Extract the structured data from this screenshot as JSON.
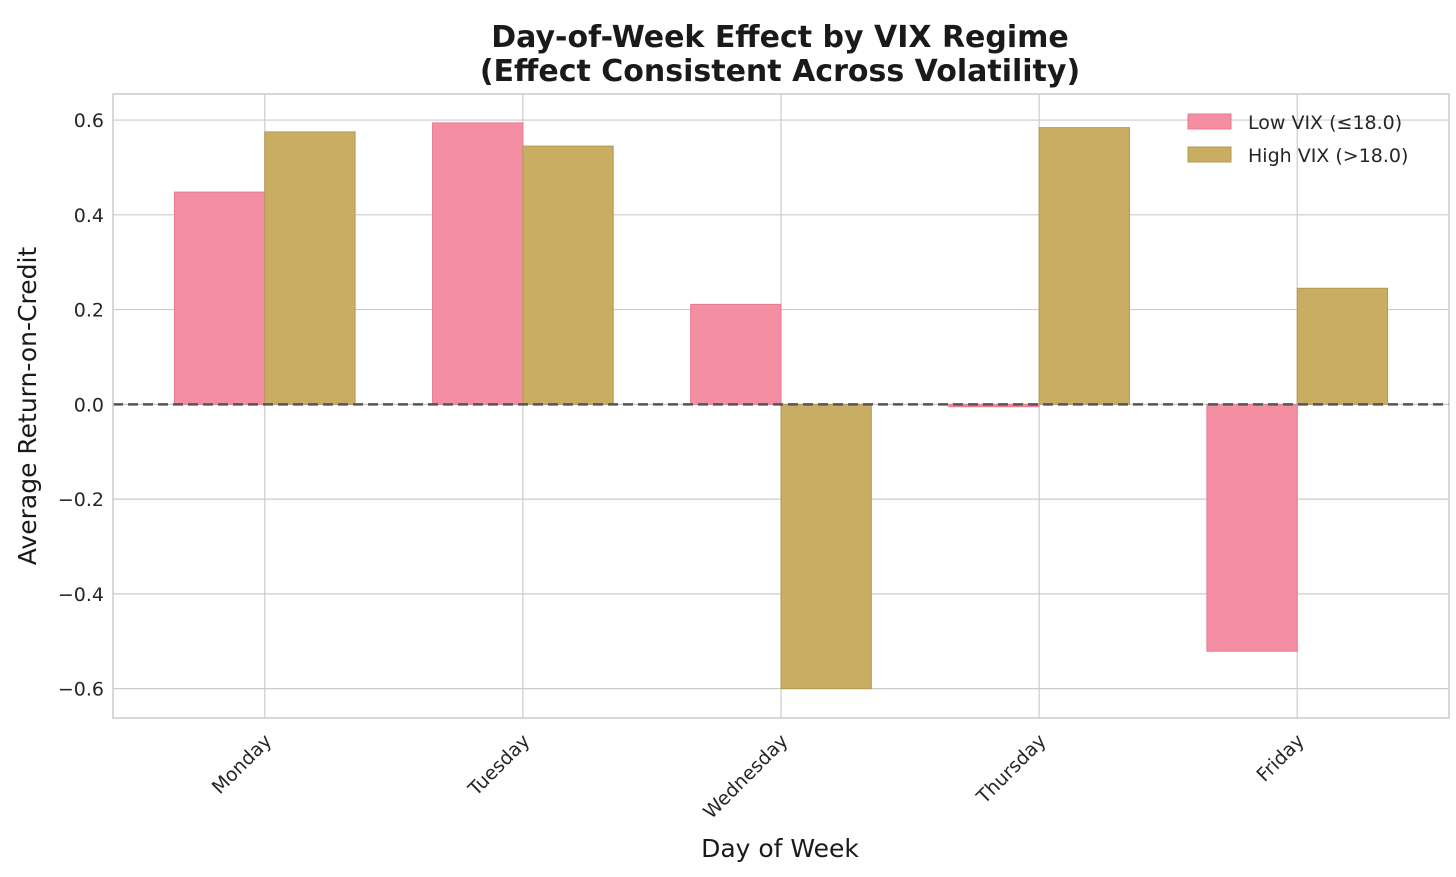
{
  "chart_data": {
    "type": "bar",
    "title": [
      "Day-of-Week Effect by VIX Regime",
      "(Effect Consistent Across Volatility)"
    ],
    "xlabel": "Day of Week",
    "ylabel": "Average Return-on-Credit",
    "categories": [
      "Monday",
      "Tuesday",
      "Wednesday",
      "Thursday",
      "Friday"
    ],
    "series": [
      {
        "name": "Low VIX (≤18.0)",
        "color": "#f48fa3",
        "edge": "#e97a91",
        "values": [
          0.448,
          0.594,
          0.211,
          -0.005,
          -0.521
        ]
      },
      {
        "name": "High VIX (>18.0)",
        "color": "#c8ad62",
        "edge": "#b39a50",
        "values": [
          0.575,
          0.545,
          -0.6,
          0.584,
          0.245
        ]
      }
    ],
    "ylim": [
      -0.662,
      0.655
    ],
    "yticks": [
      0.6,
      0.4,
      0.2,
      0.0,
      -0.2,
      -0.4,
      -0.6
    ],
    "ytick_labels": [
      "0.6",
      "0.4",
      "0.2",
      "0.0",
      "−0.2",
      "−0.4",
      "−0.6"
    ],
    "grid": true,
    "zero_line": "dashed",
    "legend_position": "top-right"
  }
}
